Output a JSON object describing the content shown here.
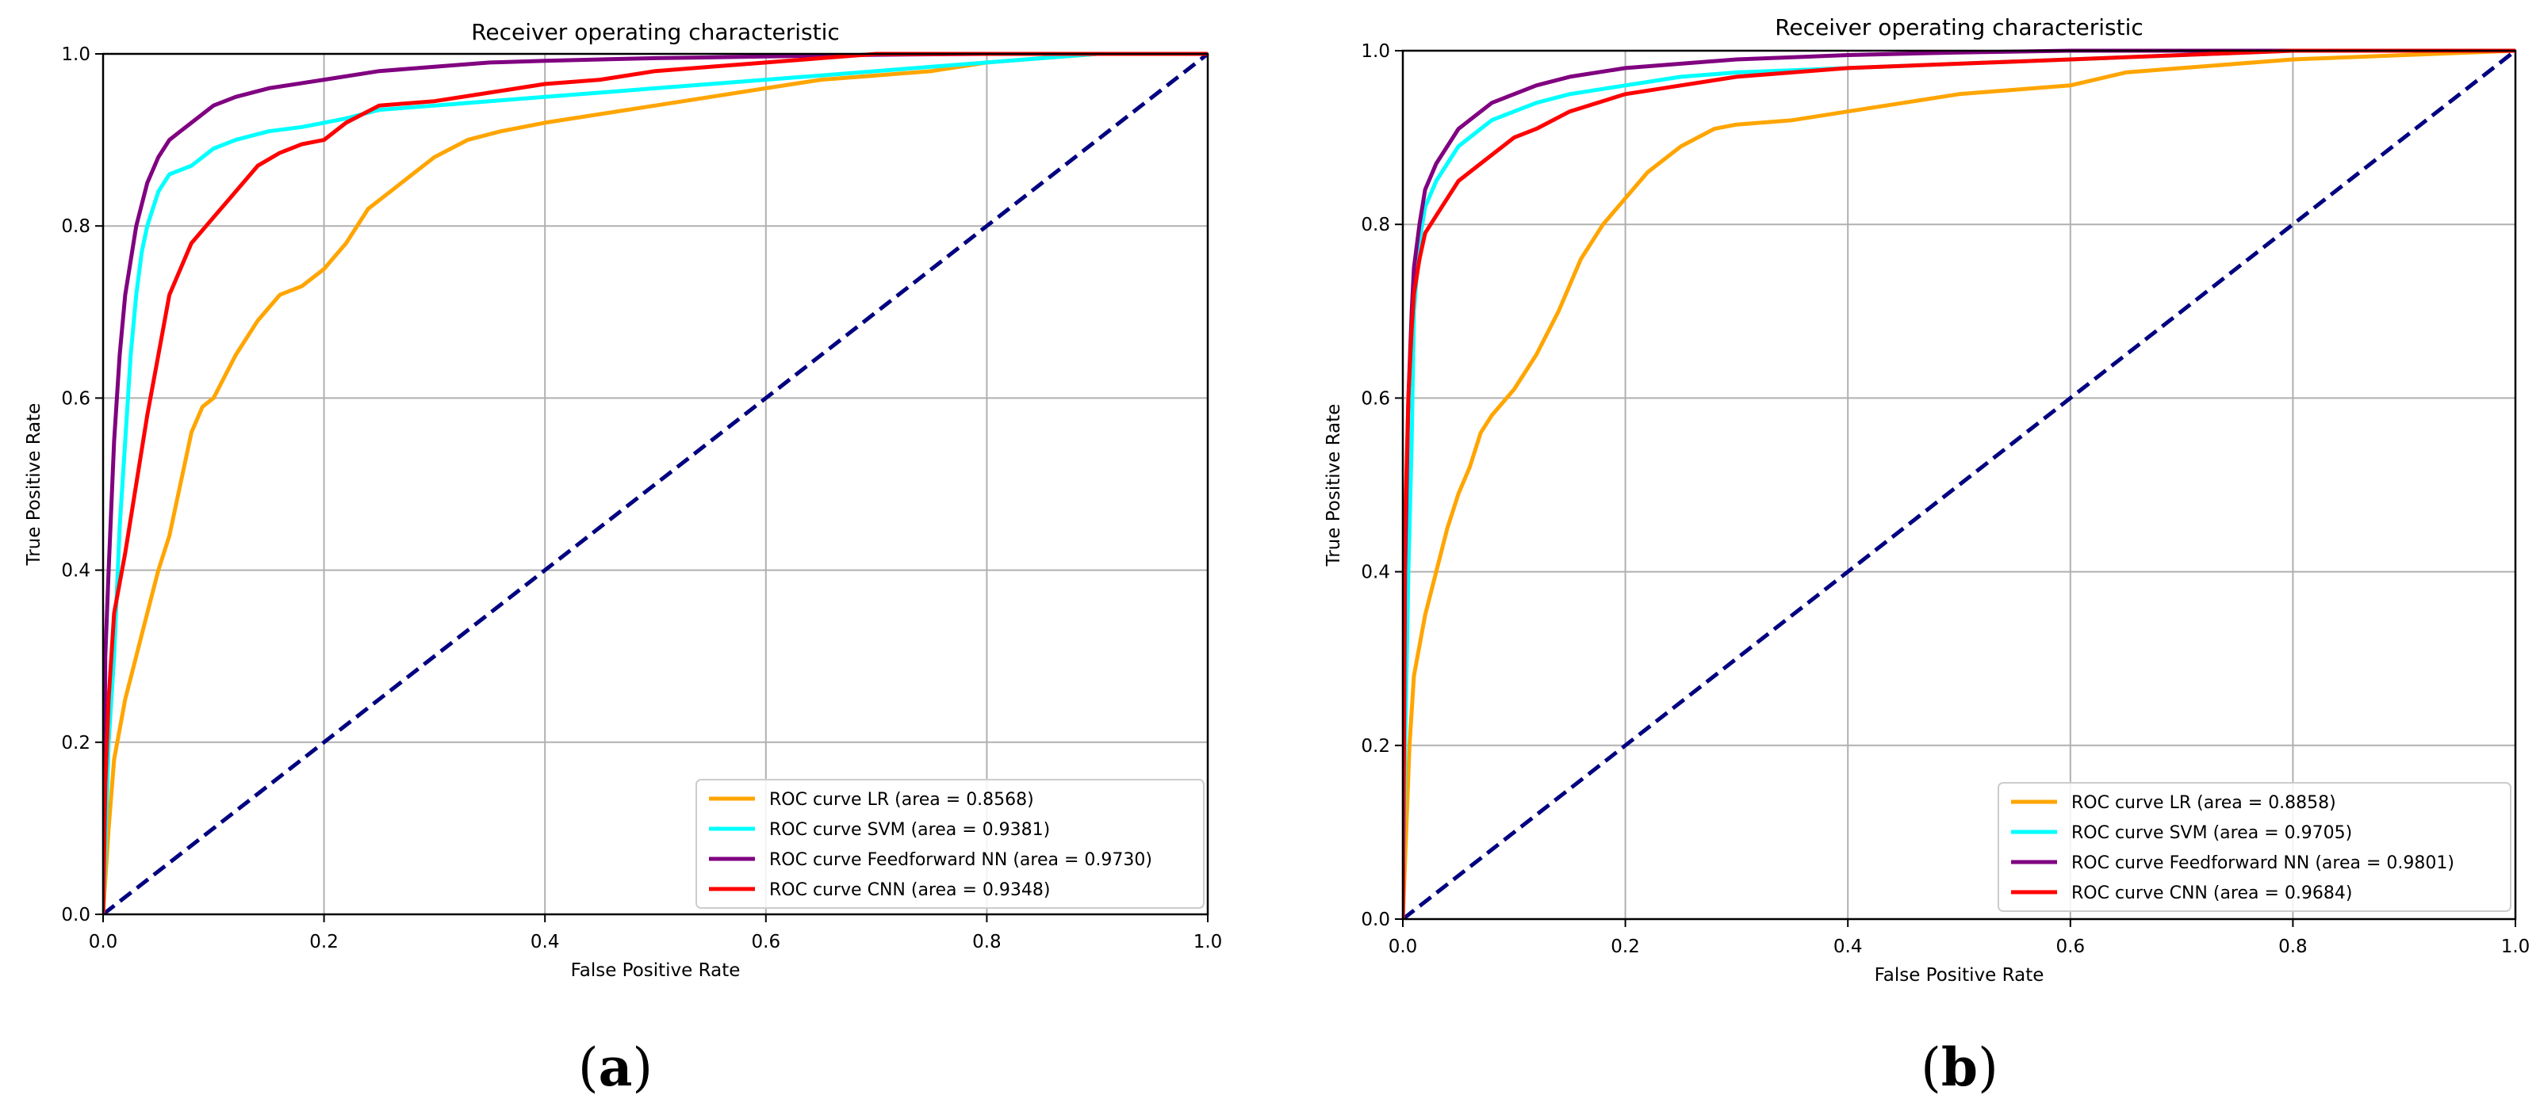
{
  "chart_data": [
    {
      "id": "a",
      "type": "line",
      "title": "Receiver operating characteristic",
      "xlabel": "False Positive Rate",
      "ylabel": "True Positive Rate",
      "xlim": [
        0,
        1.0
      ],
      "ylim": [
        0,
        1.0
      ],
      "xticks": [
        "0.0",
        "0.2",
        "0.4",
        "0.6",
        "0.8",
        "1.0"
      ],
      "yticks": [
        "0.0",
        "0.2",
        "0.4",
        "0.6",
        "0.8",
        "1.0"
      ],
      "grid": true,
      "legend_position": "lower-right",
      "caption": {
        "open": "(",
        "letter": "a",
        "close": ")"
      },
      "series": [
        {
          "name": "ROC curve LR (area = 0.8568)",
          "color": "#FFA500",
          "x": [
            0,
            0.005,
            0.01,
            0.02,
            0.03,
            0.04,
            0.05,
            0.06,
            0.07,
            0.08,
            0.09,
            0.1,
            0.12,
            0.14,
            0.16,
            0.18,
            0.2,
            0.22,
            0.24,
            0.26,
            0.28,
            0.3,
            0.33,
            0.36,
            0.4,
            0.45,
            0.5,
            0.55,
            0.6,
            0.65,
            0.7,
            0.75,
            0.8,
            0.85,
            0.9,
            0.95,
            1.0
          ],
          "y": [
            0,
            0.1,
            0.18,
            0.25,
            0.3,
            0.35,
            0.4,
            0.44,
            0.5,
            0.56,
            0.59,
            0.6,
            0.65,
            0.69,
            0.72,
            0.73,
            0.75,
            0.78,
            0.82,
            0.84,
            0.86,
            0.88,
            0.9,
            0.91,
            0.92,
            0.93,
            0.94,
            0.95,
            0.96,
            0.97,
            0.975,
            0.98,
            0.99,
            0.995,
            1.0,
            1.0,
            1.0
          ]
        },
        {
          "name": "ROC curve SVM (area = 0.9381)",
          "color": "#00FFFF",
          "x": [
            0,
            0.005,
            0.01,
            0.015,
            0.02,
            0.025,
            0.03,
            0.035,
            0.04,
            0.05,
            0.06,
            0.08,
            0.1,
            0.12,
            0.15,
            0.18,
            0.2,
            0.22,
            0.25,
            0.3,
            0.35,
            0.4,
            0.45,
            0.5,
            0.55,
            0.6,
            0.65,
            0.7,
            0.75,
            0.8,
            0.85,
            0.9,
            0.95,
            1.0
          ],
          "y": [
            0,
            0.2,
            0.3,
            0.45,
            0.55,
            0.65,
            0.72,
            0.77,
            0.8,
            0.84,
            0.86,
            0.87,
            0.89,
            0.9,
            0.91,
            0.915,
            0.92,
            0.925,
            0.935,
            0.94,
            0.945,
            0.95,
            0.955,
            0.96,
            0.965,
            0.97,
            0.975,
            0.98,
            0.985,
            0.99,
            0.995,
            1.0,
            1.0,
            1.0
          ]
        },
        {
          "name": "ROC curve Feedforward NN (area = 0.9730)",
          "color": "#800080",
          "x": [
            0,
            0.002,
            0.005,
            0.01,
            0.015,
            0.02,
            0.03,
            0.04,
            0.05,
            0.06,
            0.07,
            0.08,
            0.1,
            0.12,
            0.15,
            0.2,
            0.25,
            0.3,
            0.35,
            0.4,
            0.5,
            0.6,
            0.7,
            0.8,
            0.9,
            1.0
          ],
          "y": [
            0,
            0.3,
            0.4,
            0.55,
            0.65,
            0.72,
            0.8,
            0.85,
            0.88,
            0.9,
            0.91,
            0.92,
            0.94,
            0.95,
            0.96,
            0.97,
            0.98,
            0.985,
            0.99,
            0.992,
            0.995,
            0.997,
            0.999,
            1.0,
            1.0,
            1.0
          ]
        },
        {
          "name": "ROC curve CNN (area = 0.9348)",
          "color": "#FF0000",
          "x": [
            0,
            0.002,
            0.005,
            0.01,
            0.02,
            0.03,
            0.04,
            0.05,
            0.06,
            0.07,
            0.08,
            0.1,
            0.12,
            0.14,
            0.16,
            0.18,
            0.2,
            0.22,
            0.25,
            0.3,
            0.35,
            0.4,
            0.45,
            0.5,
            0.55,
            0.6,
            0.65,
            0.7,
            0.75,
            0.8,
            0.85,
            0.9,
            1.0
          ],
          "y": [
            0,
            0.15,
            0.25,
            0.35,
            0.42,
            0.5,
            0.58,
            0.65,
            0.72,
            0.75,
            0.78,
            0.81,
            0.84,
            0.87,
            0.885,
            0.895,
            0.9,
            0.92,
            0.94,
            0.945,
            0.955,
            0.965,
            0.97,
            0.98,
            0.985,
            0.99,
            0.995,
            1.0,
            1.0,
            1.0,
            1.0,
            1.0,
            1.0
          ]
        },
        {
          "name": "",
          "color": "#000080",
          "dashed": true,
          "x": [
            0,
            1.0
          ],
          "y": [
            0,
            1.0
          ]
        }
      ]
    },
    {
      "id": "b",
      "type": "line",
      "title": "Receiver operating characteristic",
      "xlabel": "False Positive Rate",
      "ylabel": "True Positive Rate",
      "xlim": [
        0,
        1.0
      ],
      "ylim": [
        0,
        1.0
      ],
      "xticks": [
        "0.0",
        "0.2",
        "0.4",
        "0.6",
        "0.8",
        "1.0"
      ],
      "yticks": [
        "0.0",
        "0.2",
        "0.4",
        "0.6",
        "0.8",
        "1.0"
      ],
      "grid": true,
      "legend_position": "lower-right",
      "caption": {
        "open": "(",
        "letter": "b",
        "close": ")"
      },
      "series": [
        {
          "name": "ROC curve LR (area = 0.8858)",
          "color": "#FFA500",
          "x": [
            0,
            0.003,
            0.006,
            0.01,
            0.02,
            0.03,
            0.04,
            0.05,
            0.06,
            0.07,
            0.08,
            0.1,
            0.12,
            0.14,
            0.16,
            0.18,
            0.2,
            0.22,
            0.25,
            0.28,
            0.3,
            0.35,
            0.4,
            0.45,
            0.5,
            0.55,
            0.6,
            0.65,
            0.7,
            0.8,
            0.9,
            1.0
          ],
          "y": [
            0,
            0.1,
            0.2,
            0.28,
            0.35,
            0.4,
            0.45,
            0.49,
            0.52,
            0.56,
            0.58,
            0.61,
            0.65,
            0.7,
            0.76,
            0.8,
            0.83,
            0.86,
            0.89,
            0.91,
            0.915,
            0.92,
            0.93,
            0.94,
            0.95,
            0.955,
            0.96,
            0.975,
            0.98,
            0.99,
            0.995,
            1.0
          ]
        },
        {
          "name": "ROC curve SVM (area = 0.9705)",
          "color": "#00FFFF",
          "x": [
            0,
            0.002,
            0.005,
            0.008,
            0.01,
            0.015,
            0.02,
            0.03,
            0.04,
            0.05,
            0.06,
            0.08,
            0.1,
            0.12,
            0.15,
            0.2,
            0.25,
            0.3,
            0.4,
            0.5,
            0.6,
            0.7,
            0.8,
            0.9,
            1.0
          ],
          "y": [
            0,
            0.2,
            0.4,
            0.55,
            0.7,
            0.78,
            0.82,
            0.85,
            0.87,
            0.89,
            0.9,
            0.92,
            0.93,
            0.94,
            0.95,
            0.96,
            0.97,
            0.975,
            0.98,
            0.985,
            0.99,
            0.995,
            1.0,
            1.0,
            1.0
          ]
        },
        {
          "name": "ROC curve Feedforward NN (area = 0.9801)",
          "color": "#800080",
          "x": [
            0,
            0.002,
            0.005,
            0.008,
            0.01,
            0.015,
            0.02,
            0.03,
            0.04,
            0.05,
            0.06,
            0.08,
            0.1,
            0.12,
            0.15,
            0.2,
            0.25,
            0.3,
            0.4,
            0.5,
            0.6,
            0.7,
            0.8,
            0.9,
            1.0
          ],
          "y": [
            0,
            0.4,
            0.6,
            0.7,
            0.75,
            0.8,
            0.84,
            0.87,
            0.89,
            0.91,
            0.92,
            0.94,
            0.95,
            0.96,
            0.97,
            0.98,
            0.985,
            0.99,
            0.995,
            0.998,
            1.0,
            1.0,
            1.0,
            1.0,
            1.0
          ]
        },
        {
          "name": "ROC curve CNN (area = 0.9684)",
          "color": "#FF0000",
          "x": [
            0,
            0.002,
            0.005,
            0.008,
            0.01,
            0.015,
            0.02,
            0.03,
            0.04,
            0.05,
            0.06,
            0.08,
            0.1,
            0.12,
            0.15,
            0.2,
            0.25,
            0.3,
            0.35,
            0.4,
            0.5,
            0.6,
            0.7,
            0.8,
            0.9,
            1.0
          ],
          "y": [
            0,
            0.45,
            0.6,
            0.68,
            0.72,
            0.76,
            0.79,
            0.81,
            0.83,
            0.85,
            0.86,
            0.88,
            0.9,
            0.91,
            0.93,
            0.95,
            0.96,
            0.97,
            0.975,
            0.98,
            0.985,
            0.99,
            0.995,
            1.0,
            1.0,
            1.0
          ]
        },
        {
          "name": "",
          "color": "#000080",
          "dashed": true,
          "x": [
            0,
            1.0
          ],
          "y": [
            0,
            1.0
          ]
        }
      ]
    }
  ]
}
